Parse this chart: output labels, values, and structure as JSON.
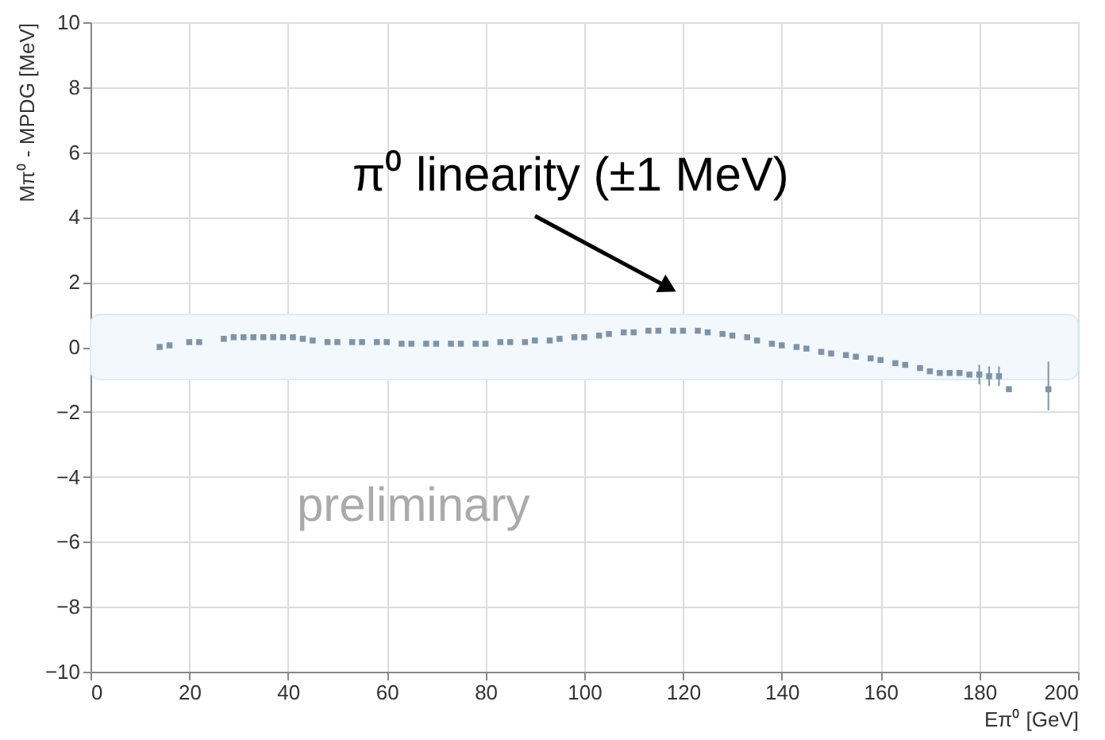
{
  "chart_data": {
    "type": "scatter",
    "xlabel": "Eπ⁰ [GeV]",
    "ylabel": "Mπ⁰ - MPDG [MeV]",
    "x": [
      14,
      16,
      20,
      22,
      27,
      29,
      31,
      33,
      35,
      37,
      39,
      41,
      43,
      45,
      48,
      50,
      53,
      55,
      58,
      60,
      63,
      65,
      68,
      70,
      73,
      75,
      78,
      80,
      83,
      85,
      88,
      90,
      93,
      95,
      98,
      100,
      103,
      105,
      108,
      110,
      113,
      115,
      118,
      120,
      123,
      125,
      128,
      130,
      133,
      135,
      138,
      140,
      143,
      145,
      148,
      150,
      153,
      155,
      158,
      160,
      163,
      165,
      168,
      170,
      172,
      174,
      176,
      178,
      180,
      182,
      184,
      186,
      194
    ],
    "values": [
      0.0,
      0.05,
      0.15,
      0.15,
      0.25,
      0.3,
      0.3,
      0.3,
      0.3,
      0.3,
      0.3,
      0.3,
      0.25,
      0.2,
      0.15,
      0.15,
      0.15,
      0.15,
      0.15,
      0.15,
      0.1,
      0.1,
      0.1,
      0.1,
      0.1,
      0.1,
      0.1,
      0.1,
      0.15,
      0.15,
      0.15,
      0.2,
      0.2,
      0.25,
      0.3,
      0.3,
      0.35,
      0.4,
      0.45,
      0.45,
      0.5,
      0.5,
      0.5,
      0.5,
      0.5,
      0.45,
      0.4,
      0.35,
      0.3,
      0.2,
      0.1,
      0.05,
      0.0,
      -0.05,
      -0.15,
      -0.2,
      -0.25,
      -0.3,
      -0.35,
      -0.4,
      -0.5,
      -0.55,
      -0.65,
      -0.75,
      -0.8,
      -0.8,
      -0.8,
      -0.85,
      -0.85,
      -0.9,
      -0.9,
      -1.3,
      -1.3
    ],
    "errors": [
      null,
      null,
      null,
      null,
      null,
      null,
      null,
      null,
      null,
      null,
      null,
      null,
      null,
      null,
      null,
      null,
      null,
      null,
      null,
      null,
      null,
      null,
      null,
      null,
      null,
      null,
      null,
      null,
      null,
      null,
      null,
      null,
      null,
      null,
      null,
      null,
      null,
      null,
      null,
      null,
      null,
      null,
      null,
      null,
      null,
      null,
      null,
      null,
      null,
      null,
      null,
      null,
      null,
      null,
      null,
      null,
      null,
      null,
      null,
      null,
      null,
      null,
      null,
      null,
      null,
      null,
      null,
      null,
      0.3,
      0.3,
      0.3,
      null,
      [
        -1.95,
        -0.45
      ]
    ],
    "color": "#7f93a8",
    "marker": "square",
    "xlim": [
      0,
      200
    ],
    "xticks": [
      0,
      20,
      40,
      60,
      80,
      100,
      120,
      140,
      160,
      180,
      200
    ],
    "ylim": [
      -10,
      10
    ],
    "yticks": [
      -10,
      -8,
      -6,
      -4,
      -2,
      0,
      2,
      4,
      6,
      8,
      10
    ],
    "grid": true,
    "bands": [
      {
        "axis": "y",
        "from": -1,
        "to": 1,
        "color": "#f2f8fc"
      }
    ],
    "annotations": [
      "π⁰ linearity (±1 MeV)",
      "preliminary"
    ]
  }
}
